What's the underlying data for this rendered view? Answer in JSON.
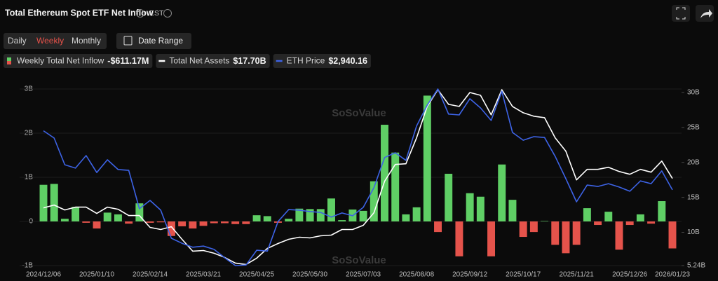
{
  "header": {
    "title": "Total Ethereum Spot ETF Net Inflow",
    "timezone": "EST"
  },
  "tabs": [
    "Daily",
    "Weekly",
    "Monthly"
  ],
  "active_tab": 1,
  "date_button": "Date Range",
  "watermark": "SoSoValue",
  "chart_data": {
    "type": "combo",
    "grid": true,
    "categories": [
      "2024/12/06",
      null,
      null,
      null,
      null,
      "2025/01/10",
      null,
      null,
      null,
      null,
      "2025/02/14",
      null,
      null,
      null,
      null,
      "2025/03/21",
      null,
      null,
      null,
      null,
      "2025/04/25",
      null,
      null,
      null,
      null,
      "2025/05/30",
      null,
      null,
      null,
      null,
      "2025/07/03",
      null,
      null,
      null,
      null,
      "2025/08/08",
      null,
      null,
      null,
      null,
      "2025/09/12",
      null,
      null,
      null,
      null,
      "2025/10/17",
      null,
      null,
      null,
      null,
      "2025/11/21",
      null,
      null,
      null,
      null,
      "2025/12/26",
      null,
      null,
      null,
      "2026/01/23"
    ],
    "ylim": [
      -1,
      3
    ],
    "yticks": [
      {
        "value": 3,
        "label": "3B"
      },
      {
        "value": 2,
        "label": "2B"
      },
      {
        "value": 1,
        "label": "1B"
      },
      0,
      {
        "value": -1,
        "label": "-1B"
      }
    ],
    "y2lim": [
      5.24,
      30.5
    ],
    "y2ticks": [
      {
        "value": 30,
        "label": "30B"
      },
      {
        "value": 25,
        "label": "25B"
      },
      {
        "value": 20,
        "label": "20B"
      },
      {
        "value": 15,
        "label": "15B"
      },
      {
        "value": 10,
        "label": "10B"
      },
      {
        "value": 5.24,
        "label": "5.24B"
      }
    ],
    "y3lim": [
      1580,
      4750
    ],
    "series": [
      {
        "name": "Weekly Total Net Inflow",
        "type": "bar",
        "color": "#5fcf65",
        "negative_color": "#e5534b",
        "current_label": "-$611.17M",
        "values": [
          0.83,
          0.85,
          0.06,
          0.33,
          -0.03,
          -0.16,
          0.2,
          0.16,
          -0.05,
          0.41,
          -0.03,
          -0.02,
          -0.33,
          -0.11,
          -0.16,
          -0.1,
          -0.04,
          -0.04,
          -0.06,
          -0.06,
          0.14,
          0.12,
          -0.03,
          0.06,
          0.29,
          0.28,
          0.28,
          0.52,
          0.03,
          0.27,
          0.24,
          0.91,
          2.19,
          1.56,
          0.16,
          0.32,
          2.85,
          -0.24,
          1.08,
          -0.79,
          0.64,
          0.56,
          -0.79,
          1.29,
          0.49,
          -0.35,
          -0.24,
          0.01,
          -0.53,
          -0.72,
          -0.53,
          0.3,
          -0.08,
          0.22,
          -0.64,
          -0.08,
          0.16,
          -0.05,
          0.46,
          -0.61117
        ]
      },
      {
        "name": "Total Net Assets",
        "type": "line",
        "axis": "y2",
        "color": "#ffffff",
        "current_label": "$17.70B",
        "values": [
          13.5,
          13.9,
          13.2,
          13.6,
          13.6,
          12.7,
          13.6,
          13.3,
          12.4,
          12.4,
          10.7,
          10.4,
          10.8,
          9.0,
          7.3,
          7.4,
          7.0,
          6.4,
          5.6,
          5.4,
          6.3,
          7.7,
          8.4,
          9.0,
          9.3,
          9.2,
          9.5,
          9.6,
          10.4,
          10.4,
          11.0,
          12.8,
          17.3,
          19.7,
          19.8,
          23.5,
          28.0,
          30.4,
          28.3,
          28.0,
          30.0,
          29.6,
          26.8,
          30.4,
          28.0,
          27.1,
          26.6,
          26.4,
          23.5,
          21.6,
          17.5,
          19.0,
          19.0,
          19.3,
          18.7,
          18.3,
          19.0,
          18.6,
          20.2,
          17.7
        ]
      },
      {
        "name": "ETH Price",
        "type": "line",
        "axis": "y3",
        "color": "#3d63e6",
        "current_label": "$2,940.16",
        "values": [
          4000,
          3870,
          3390,
          3330,
          3555,
          3250,
          3480,
          3305,
          3290,
          2600,
          2750,
          2575,
          2070,
          1980,
          1910,
          1930,
          1870,
          1720,
          1580,
          1590,
          1855,
          1840,
          2370,
          2585,
          2575,
          2550,
          2535,
          2450,
          2525,
          2475,
          2625,
          2980,
          3520,
          3605,
          3470,
          4085,
          4460,
          4750,
          4300,
          4285,
          4575,
          4410,
          4185,
          4710,
          3970,
          3830,
          3895,
          3880,
          3540,
          3140,
          2725,
          3025,
          3000,
          3050,
          2990,
          2915,
          3100,
          3050,
          3280,
          2940.16
        ]
      }
    ]
  }
}
